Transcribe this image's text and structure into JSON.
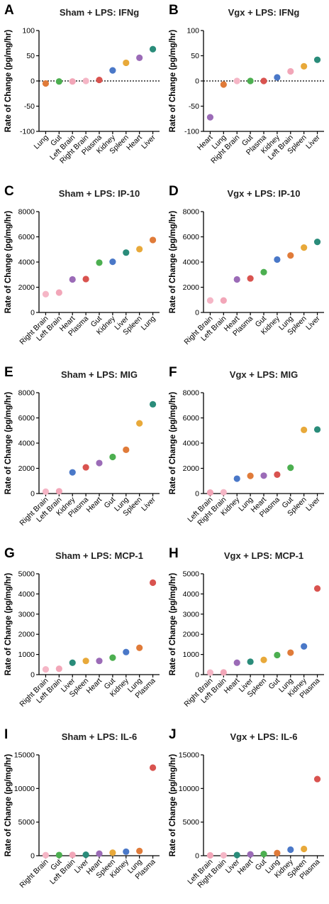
{
  "colors": {
    "Lung": "#e07b39",
    "Gut": "#4caf50",
    "Left Brain": "#f2a6b8",
    "Right Brain": "#f5b6c6",
    "Plasma": "#d9534f",
    "Kidney": "#4a78c8",
    "Spleen": "#e8a93a",
    "Heart": "#9b6bb7",
    "Liver": "#2a8c7a",
    "axis": "#000000"
  },
  "ylabel": "Rate of Change (pg/mg/hr)",
  "chart_data": [
    {
      "letter": "A",
      "title": "Sham + LPS: IFNg",
      "type": "scatter",
      "ylim": [
        -100,
        100
      ],
      "yticks": [
        -100,
        -50,
        0,
        50,
        100
      ],
      "zero_line": true,
      "categories": [
        "Lung",
        "Gut",
        "Left Brain",
        "Right Brain",
        "Plasma",
        "Kidney",
        "Spleen",
        "Heart",
        "Liver"
      ],
      "values": [
        -5,
        -1,
        -1,
        0,
        2,
        21,
        36,
        46,
        63
      ]
    },
    {
      "letter": "B",
      "title": "Vgx + LPS: IFNg",
      "type": "scatter",
      "ylim": [
        -100,
        100
      ],
      "yticks": [
        -100,
        -50,
        0,
        50,
        100
      ],
      "zero_line": true,
      "categories": [
        "Heart",
        "Lung",
        "Right Brain",
        "Gut",
        "Plasma",
        "Kidney",
        "Left Brain",
        "Spleen",
        "Liver"
      ],
      "values": [
        -72,
        -7,
        0,
        0,
        0,
        7,
        19,
        29,
        42
      ]
    },
    {
      "letter": "C",
      "title": "Sham + LPS: IP-10",
      "type": "scatter",
      "ylim": [
        0,
        8000
      ],
      "yticks": [
        0,
        2000,
        4000,
        6000,
        8000
      ],
      "zero_line": false,
      "categories": [
        "Right Brain",
        "Left Brain",
        "Heart",
        "Plasma",
        "Gut",
        "Kidney",
        "Liver",
        "Spleen",
        "Lung"
      ],
      "values": [
        1450,
        1580,
        2620,
        2650,
        3950,
        4020,
        4750,
        5020,
        5750
      ]
    },
    {
      "letter": "D",
      "title": "Vgx + LPS: IP-10",
      "type": "scatter",
      "ylim": [
        0,
        8000
      ],
      "yticks": [
        0,
        2000,
        4000,
        6000,
        8000
      ],
      "zero_line": false,
      "categories": [
        "Right Brain",
        "Left Brain",
        "Heart",
        "Plasma",
        "Gut",
        "Kidney",
        "Lung",
        "Spleen",
        "Liver"
      ],
      "values": [
        950,
        950,
        2620,
        2700,
        3200,
        4200,
        4520,
        5150,
        5600
      ]
    },
    {
      "letter": "E",
      "title": "Sham + LPS: MIG",
      "type": "scatter",
      "ylim": [
        0,
        8000
      ],
      "yticks": [
        0,
        2000,
        4000,
        6000,
        8000
      ],
      "zero_line": false,
      "categories": [
        "Right Brain",
        "Left Brain",
        "Kidney",
        "Plasma",
        "Heart",
        "Gut",
        "Lung",
        "Spleen",
        "Liver"
      ],
      "values": [
        150,
        180,
        1680,
        2080,
        2420,
        2900,
        3470,
        5570,
        7080
      ]
    },
    {
      "letter": "F",
      "title": "Vgx + LPS: MIG",
      "type": "scatter",
      "ylim": [
        0,
        8000
      ],
      "yticks": [
        0,
        2000,
        4000,
        6000,
        8000
      ],
      "zero_line": false,
      "categories": [
        "Left Brain",
        "Right Brain",
        "Kidney",
        "Lung",
        "Heart",
        "Plasma",
        "Gut",
        "Spleen",
        "Liver"
      ],
      "values": [
        80,
        100,
        1180,
        1400,
        1420,
        1500,
        2050,
        5050,
        5080
      ]
    },
    {
      "letter": "G",
      "title": "Sham + LPS: MCP-1",
      "type": "scatter",
      "ylim": [
        0,
        5000
      ],
      "yticks": [
        0,
        1000,
        2000,
        3000,
        4000,
        5000
      ],
      "zero_line": false,
      "categories": [
        "Right Brain",
        "Left Brain",
        "Liver",
        "Spleen",
        "Heart",
        "Gut",
        "Kidney",
        "Lung",
        "Plasma"
      ],
      "values": [
        260,
        290,
        590,
        680,
        680,
        840,
        1120,
        1330,
        4560
      ]
    },
    {
      "letter": "H",
      "title": "Vgx + LPS: MCP-1",
      "type": "scatter",
      "ylim": [
        0,
        5000
      ],
      "yticks": [
        0,
        1000,
        2000,
        3000,
        4000,
        5000
      ],
      "zero_line": false,
      "categories": [
        "Right Brain",
        "Left Brain",
        "Heart",
        "Liver",
        "Spleen",
        "Gut",
        "Lung",
        "Kidney",
        "Plasma"
      ],
      "values": [
        100,
        110,
        590,
        640,
        730,
        970,
        1090,
        1400,
        4270
      ]
    },
    {
      "letter": "I",
      "title": "Sham + LPS: IL-6",
      "type": "scatter",
      "ylim": [
        0,
        15000
      ],
      "yticks": [
        0,
        5000,
        10000,
        15000
      ],
      "zero_line": false,
      "categories": [
        "Right Brain",
        "Gut",
        "Left Brain",
        "Liver",
        "Heart",
        "Spleen",
        "Kidney",
        "Lung",
        "Plasma"
      ],
      "values": [
        80,
        100,
        120,
        150,
        300,
        450,
        600,
        700,
        13100
      ]
    },
    {
      "letter": "J",
      "title": "Vgx + LPS: IL-6",
      "type": "scatter",
      "ylim": [
        0,
        15000
      ],
      "yticks": [
        0,
        5000,
        10000,
        15000
      ],
      "zero_line": false,
      "categories": [
        "Left Brain",
        "Right Brain",
        "Liver",
        "Heart",
        "Gut",
        "Lung",
        "Kidney",
        "Spleen",
        "Plasma"
      ],
      "values": [
        50,
        60,
        100,
        200,
        250,
        400,
        900,
        1000,
        11400
      ]
    }
  ]
}
